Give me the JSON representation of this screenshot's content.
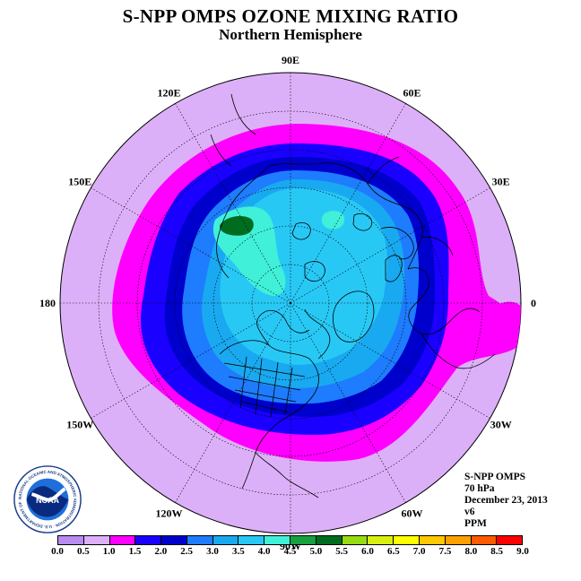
{
  "title": "S-NPP OMPS OZONE MIXING RATIO",
  "subtitle": "Northern Hemisphere",
  "longitude_labels": [
    {
      "text": "90E",
      "angle": 90
    },
    {
      "text": "60E",
      "angle": 60
    },
    {
      "text": "30E",
      "angle": 30
    },
    {
      "text": "0",
      "angle": 0
    },
    {
      "text": "30W",
      "angle": -30
    },
    {
      "text": "60W",
      "angle": -60
    },
    {
      "text": "90W",
      "angle": -90
    },
    {
      "text": "120W",
      "angle": -120
    },
    {
      "text": "150W",
      "angle": -150
    },
    {
      "text": "180",
      "angle": 180
    },
    {
      "text": "150E",
      "angle": 150
    },
    {
      "text": "120E",
      "angle": 120
    }
  ],
  "info": {
    "instrument": "S-NPP OMPS",
    "level": "70 hPa",
    "date": "December 23, 2013",
    "version": "v6",
    "units": "PPM"
  },
  "logo": {
    "text": "NOAA",
    "ring_text": "NATIONAL OCEANIC AND ATMOSPHERIC ADMINISTRATION · U.S. DEPARTMENT OF COMMERCE"
  },
  "colorbar": {
    "labels": [
      "0.0",
      "0.5",
      "1.0",
      "1.5",
      "2.0",
      "2.5",
      "3.0",
      "3.5",
      "4.0",
      "4.5",
      "5.0",
      "5.5",
      "6.0",
      "6.5",
      "7.0",
      "7.5",
      "8.0",
      "8.5",
      "9.0"
    ],
    "colors": [
      "#b88cf0",
      "#dcb0f8",
      "#ff00ff",
      "#1a00ff",
      "#0000cc",
      "#1e7cff",
      "#19a9f0",
      "#28c8f5",
      "#40f0d8",
      "#16a040",
      "#006c20",
      "#96dc10",
      "#d8f010",
      "#ffff00",
      "#ffc800",
      "#ffa000",
      "#ff5a00",
      "#ff0000",
      "#8b4f35"
    ]
  },
  "map": {
    "background": "#dcb0f8",
    "contours_ppm": [
      1.0,
      1.5,
      2.0,
      2.5,
      3.0,
      3.5,
      4.0,
      5.0
    ]
  }
}
